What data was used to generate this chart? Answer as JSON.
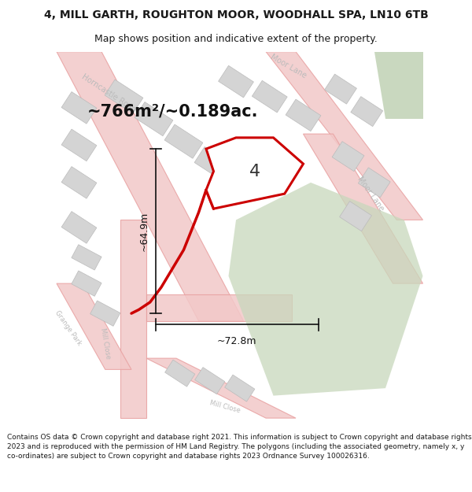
{
  "title_line1": "4, MILL GARTH, ROUGHTON MOOR, WOODHALL SPA, LN10 6TB",
  "title_line2": "Map shows position and indicative extent of the property.",
  "area_label": "~766m²/~0.189ac.",
  "plot_number": "4",
  "dim_horizontal": "~72.8m",
  "dim_vertical": "~64.9m",
  "footer_text": "Contains OS data © Crown copyright and database right 2021. This information is subject to Crown copyright and database rights 2023 and is reproduced with the permission of HM Land Registry. The polygons (including the associated geometry, namely x, y co-ordinates) are subject to Crown copyright and database rights 2023 Ordnance Survey 100026316.",
  "bg_color": "#ffffff",
  "map_bg": "#efefef",
  "road_fill": "#f2c8c8",
  "road_edge": "#e8a0a0",
  "building_fill": "#d4d4d4",
  "building_edge": "#bbbbbb",
  "green1_fill": "#c8d8bc",
  "green2_fill": "#b8ccaa",
  "highlight_red": "#cc0000",
  "highlight_fill": "#ffffff",
  "street_color": "#bbbbbb",
  "dim_color": "#111111",
  "title_fontsize": 10,
  "subtitle_fontsize": 9,
  "area_fontsize": 15,
  "plot_num_fontsize": 16,
  "dim_fontsize": 9,
  "footer_fontsize": 6.5,
  "street_fontsize": 7
}
